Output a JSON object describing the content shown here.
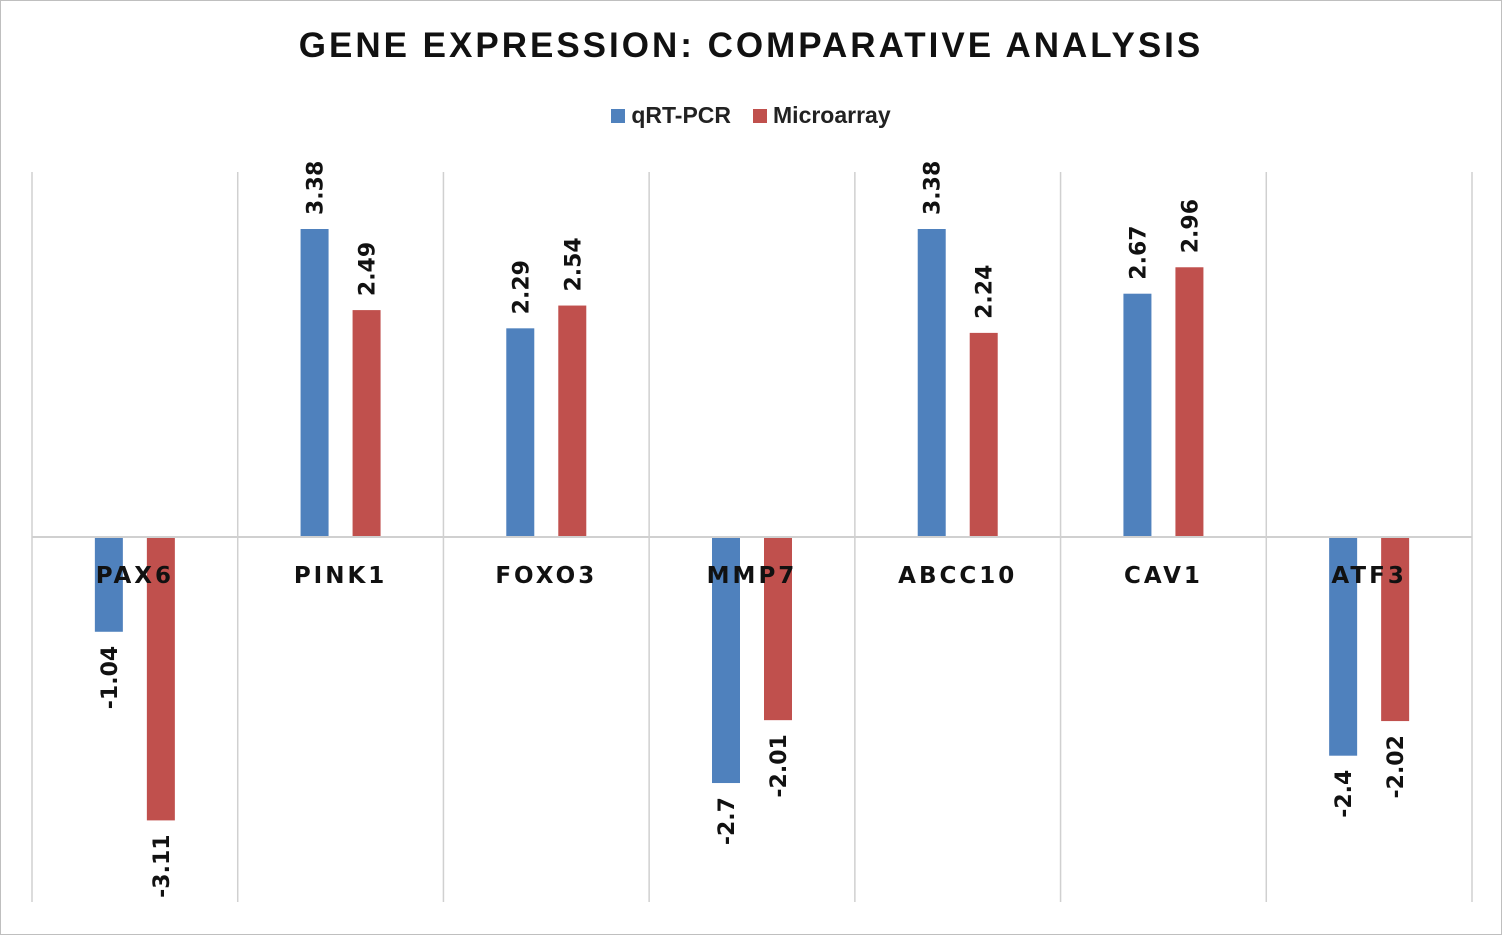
{
  "chart_data": {
    "type": "bar",
    "title": "GENE EXPRESSION: COMPARATIVE ANALYSIS",
    "xlabel": "",
    "ylabel": "",
    "categories": [
      "PAX6",
      "PINK1",
      "FOXO3",
      "MMP7",
      "ABCC10",
      "CAV1",
      "ATF3"
    ],
    "series": [
      {
        "name": "qRT-PCR",
        "color": "#4f81bd",
        "values": [
          -1.04,
          3.38,
          2.29,
          -2.7,
          3.38,
          2.67,
          -2.4
        ],
        "labels": [
          "-1.04",
          "3.38",
          "2.29",
          "-2.7",
          "3.38",
          "2.67",
          "-2.4"
        ]
      },
      {
        "name": "Microarray",
        "color": "#c0504d",
        "values": [
          -3.11,
          2.49,
          2.54,
          -2.01,
          2.24,
          2.96,
          -2.02
        ],
        "labels": [
          "-3.11",
          "2.49",
          "2.54",
          "-2.01",
          "2.24",
          "2.96",
          "-2.02"
        ]
      }
    ],
    "ylim": [
      -4,
      4
    ],
    "grid": "vertical category separators",
    "legend_position": "top"
  }
}
